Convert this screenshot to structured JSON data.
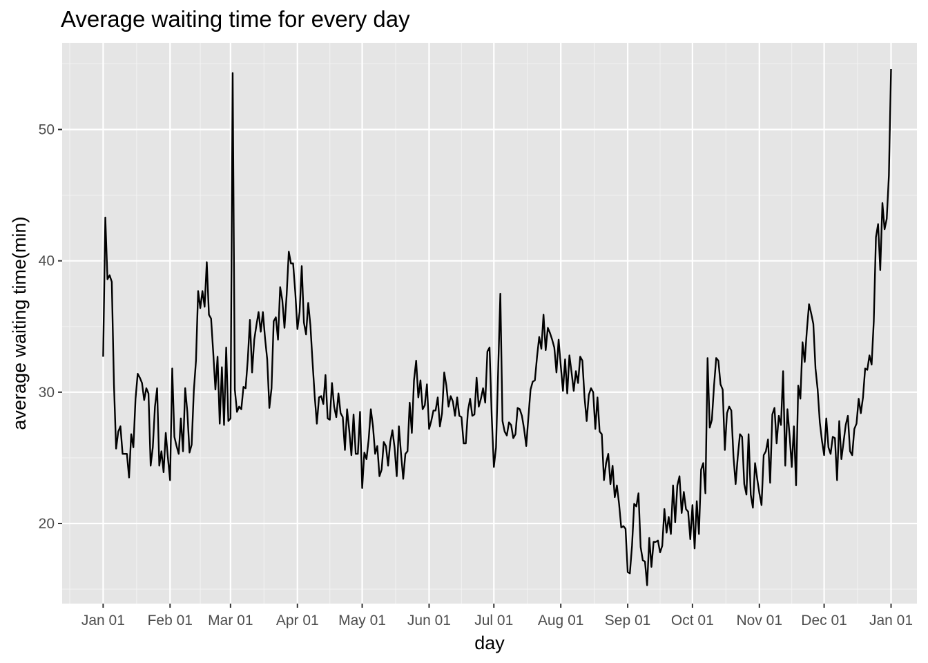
{
  "chart_data": {
    "type": "line",
    "title": "Average waiting time for every day",
    "xlabel": "day",
    "ylabel": "average waiting time(min)",
    "x_tick_labels": [
      "Jan 01",
      "Feb 01",
      "Mar 01",
      "Apr 01",
      "May 01",
      "Jun 01",
      "Jul 01",
      "Aug 01",
      "Sep 01",
      "Oct 01",
      "Nov 01",
      "Dec 01",
      "Jan 01"
    ],
    "x_ticks": [
      "2017-01-01",
      "2017-02-01",
      "2017-03-01",
      "2017-04-01",
      "2017-05-01",
      "2017-06-01",
      "2017-07-01",
      "2017-08-01",
      "2017-09-01",
      "2017-10-01",
      "2017-11-01",
      "2017-12-01",
      "2018-01-01"
    ],
    "y_ticks": [
      20,
      30,
      40,
      50
    ],
    "y_tick_labels": [
      "20",
      "30",
      "40",
      "50"
    ],
    "xlim": [
      "2016-12-13",
      "2018-01-13"
    ],
    "ylim": [
      13.9,
      56.6
    ],
    "grid": true,
    "background": "#e5e5e5",
    "line_color": "#000000",
    "series": [
      {
        "x_start": "2017-01-01",
        "x_step_days": 1,
        "values": [
          32.7,
          43.3,
          38.6,
          38.9,
          38.4,
          30.6,
          25.7,
          27.0,
          27.4,
          25.3,
          25.3,
          25.3,
          23.5,
          26.8,
          25.8,
          29.5,
          31.4,
          31.1,
          30.7,
          29.4,
          30.3,
          29.9,
          24.4,
          25.8,
          28.9,
          30.3,
          24.4,
          25.5,
          23.9,
          26.9,
          25.0,
          23.3,
          31.8,
          26.6,
          25.9,
          25.3,
          28.0,
          25.5,
          30.3,
          28.5,
          25.4,
          26.0,
          30.1,
          32.4,
          37.7,
          36.4,
          37.7,
          36.5,
          39.9,
          35.9,
          35.6,
          33.0,
          30.2,
          32.7,
          27.6,
          31.9,
          27.5,
          33.4,
          27.8,
          28.0,
          54.3,
          30.2,
          28.5,
          28.9,
          28.7,
          30.4,
          30.3,
          32.5,
          35.5,
          31.5,
          34.0,
          35.1,
          36.1,
          34.6,
          36.1,
          34.1,
          32.5,
          28.8,
          30.3,
          35.4,
          35.7,
          34.0,
          38.0,
          37.0,
          34.9,
          37.4,
          40.7,
          39.8,
          39.8,
          37.6,
          34.8,
          36.1,
          39.6,
          35.3,
          34.4,
          36.8,
          35.1,
          32.3,
          29.7,
          27.6,
          29.6,
          29.7,
          29.1,
          31.3,
          28.0,
          27.9,
          30.7,
          28.9,
          28.1,
          29.9,
          28.4,
          28.1,
          25.6,
          28.7,
          27.1,
          25.2,
          28.3,
          25.3,
          25.3,
          28.5,
          22.7,
          25.4,
          24.9,
          26.4,
          28.7,
          27.4,
          25.3,
          25.9,
          23.6,
          24.1,
          26.2,
          25.9,
          24.4,
          26.2,
          27.1,
          25.8,
          23.6,
          27.4,
          25.3,
          23.4,
          25.3,
          25.5,
          29.2,
          26.9,
          30.9,
          32.4,
          29.6,
          30.9,
          28.7,
          29.0,
          30.6,
          27.2,
          27.8,
          28.6,
          28.6,
          29.6,
          27.4,
          28.4,
          31.5,
          30.5,
          28.9,
          29.7,
          29.3,
          28.2,
          29.6,
          28.2,
          28.1,
          26.1,
          26.1,
          28.6,
          29.5,
          28.2,
          28.3,
          31.1,
          28.9,
          29.5,
          30.3,
          29.2,
          33.1,
          33.4,
          28.2,
          24.3,
          25.8,
          31.7,
          37.5,
          27.8,
          27.0,
          26.7,
          27.7,
          27.5,
          26.5,
          26.8,
          28.8,
          28.7,
          28.2,
          27.2,
          25.9,
          28.1,
          30.2,
          30.8,
          30.9,
          32.7,
          34.2,
          33.3,
          35.9,
          33.2,
          34.9,
          34.5,
          34.0,
          33.4,
          31.5,
          34.0,
          32.0,
          30.1,
          32.5,
          29.9,
          32.8,
          31.5,
          30.1,
          31.6,
          30.7,
          32.7,
          32.4,
          29.6,
          27.8,
          29.8,
          30.3,
          30.0,
          27.2,
          29.6,
          27.0,
          26.8,
          23.3,
          24.6,
          25.3,
          23.0,
          24.4,
          22.0,
          22.9,
          21.5,
          19.7,
          19.8,
          19.6,
          16.3,
          16.2,
          18.3,
          21.5,
          21.3,
          22.3,
          18.2,
          17.2,
          17.1,
          15.3,
          18.9,
          16.7,
          18.6,
          18.6,
          18.7,
          17.8,
          18.3,
          21.1,
          19.3,
          20.5,
          19.2,
          22.9,
          20.1,
          22.9,
          23.6,
          20.8,
          22.4,
          21.1,
          20.9,
          18.8,
          21.4,
          18.1,
          21.7,
          19.2,
          24.1,
          24.6,
          22.3,
          32.6,
          27.3,
          27.9,
          30.5,
          32.6,
          32.4,
          30.6,
          30.2,
          25.6,
          28.4,
          28.9,
          28.6,
          25.1,
          23.0,
          25.1,
          26.8,
          26.6,
          23.0,
          22.2,
          26.8,
          22.2,
          21.2,
          24.6,
          23.4,
          22.3,
          21.4,
          25.2,
          25.5,
          26.4,
          23.1,
          28.3,
          28.8,
          26.1,
          28.2,
          27.5,
          31.6,
          24.4,
          28.7,
          26.7,
          24.3,
          27.4,
          22.9,
          30.5,
          29.5,
          33.8,
          32.3,
          34.7,
          36.7,
          36.0,
          35.2,
          31.8,
          30.2,
          27.7,
          26.3,
          25.2,
          28.0,
          25.8,
          25.3,
          26.6,
          26.5,
          23.3,
          27.8,
          24.9,
          26.2,
          27.5,
          28.2,
          25.5,
          25.2,
          27.2,
          27.6,
          29.5,
          28.4,
          29.6,
          31.8,
          31.7,
          32.8,
          32.1,
          35.4,
          41.8,
          42.8,
          39.3,
          44.4,
          42.4,
          43.2,
          46.5,
          54.6
        ]
      }
    ]
  }
}
